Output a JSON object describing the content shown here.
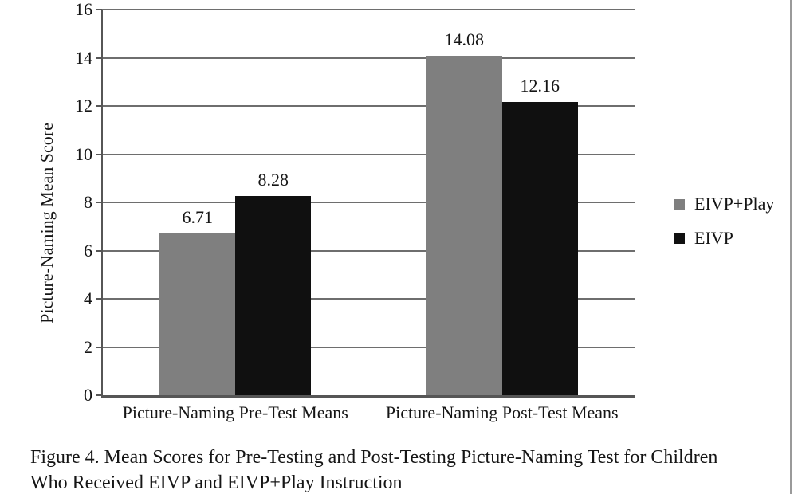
{
  "figure": {
    "caption_line1": "Figure 4. Mean Scores for Pre-Testing and Post-Testing Picture-Naming Test for Children",
    "caption_line2": "Who Received EIVP and EIVP+Play Instruction"
  },
  "chart_data": {
    "type": "bar",
    "title": "",
    "xlabel": "",
    "ylabel": "Picture-Naming Mean Score",
    "categories": [
      "Picture-Naming Pre-Test Means",
      "Picture-Naming Post-Test Means"
    ],
    "series": [
      {
        "name": "EIVP+Play",
        "color": "#7f7f7f",
        "values": [
          6.71,
          14.08
        ]
      },
      {
        "name": "EIVP",
        "color": "#101010",
        "values": [
          8.28,
          12.16
        ]
      }
    ],
    "ylim": [
      0,
      16
    ],
    "yticks": [
      0,
      2,
      4,
      6,
      8,
      10,
      12,
      14,
      16
    ],
    "grid": true,
    "legend_position": "right"
  }
}
